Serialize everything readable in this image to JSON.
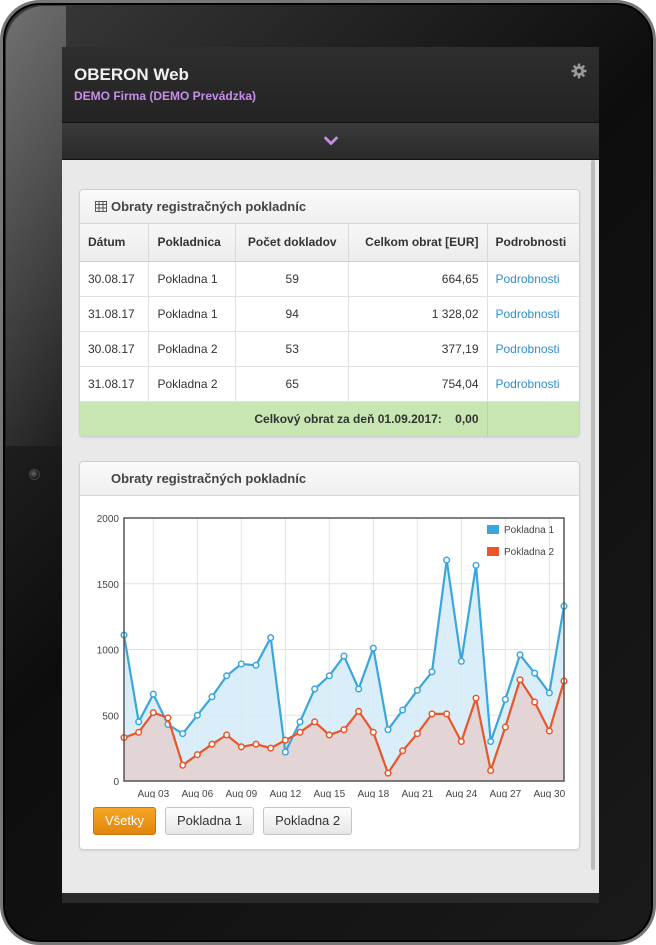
{
  "app": {
    "title": "OBERON Web",
    "subtitle": "DEMO Firma (DEMO Prevádzka)",
    "accent_color": "#c78de8",
    "header_icons": [
      "gear-icon",
      "chevron-down-icon"
    ]
  },
  "table_panel": {
    "title": "Obraty registračných pokladníc",
    "icon": "table-icon",
    "columns": [
      "Dátum",
      "Pokladnica",
      "Počet dokladov",
      "Celkom obrat [EUR]",
      "Podrobnosti"
    ],
    "rows": [
      {
        "date": "30.08.17",
        "register": "Pokladna 1",
        "count": "59",
        "total": "664,65",
        "details": "Podrobnosti"
      },
      {
        "date": "31.08.17",
        "register": "Pokladna 1",
        "count": "94",
        "total": "1 328,02",
        "details": "Podrobnosti"
      },
      {
        "date": "30.08.17",
        "register": "Pokladna 2",
        "count": "53",
        "total": "377,19",
        "details": "Podrobnosti"
      },
      {
        "date": "31.08.17",
        "register": "Pokladna 2",
        "count": "65",
        "total": "754,04",
        "details": "Podrobnosti"
      }
    ],
    "footer": {
      "label": "Celkový obrat za deň 01.09.2017:",
      "value": "0,00",
      "color": "#c8e6b2"
    },
    "link_color": "#2f8fd0"
  },
  "chart_panel": {
    "title": "Obraty registračných pokladníc",
    "buttons": [
      {
        "label": "Všetky",
        "active": true
      },
      {
        "label": "Pokladna 1",
        "active": false
      },
      {
        "label": "Pokladna 2",
        "active": false
      }
    ],
    "active_color": "#f09819"
  },
  "chart_data": {
    "type": "area",
    "x_start_day": 1,
    "x_end_day": 31,
    "tick_labels": [
      "Aug 03",
      "Aug 06",
      "Aug 09",
      "Aug 12",
      "Aug 15",
      "Aug 18",
      "Aug 21",
      "Aug 24",
      "Aug 27",
      "Aug 30"
    ],
    "tick_days": [
      3,
      6,
      9,
      12,
      15,
      18,
      21,
      24,
      27,
      30
    ],
    "ylim": [
      0,
      2000
    ],
    "y_ticks": [
      0,
      500,
      1000,
      1500,
      2000
    ],
    "legend_position": "top-right",
    "grid": true,
    "series": [
      {
        "name": "Pokladna 1",
        "color": "#3aa6dd",
        "fill": "#d4ebf8",
        "values": [
          1110,
          450,
          660,
          430,
          360,
          500,
          640,
          800,
          890,
          880,
          1090,
          220,
          450,
          700,
          800,
          950,
          700,
          1010,
          390,
          540,
          690,
          830,
          1680,
          910,
          1640,
          300,
          620,
          960,
          820,
          670,
          1330
        ]
      },
      {
        "name": "Pokladna 2",
        "color": "#e8562a",
        "fill": "#e4cfcf",
        "values": [
          330,
          370,
          520,
          480,
          120,
          200,
          280,
          350,
          260,
          280,
          250,
          310,
          370,
          450,
          350,
          390,
          530,
          370,
          60,
          230,
          360,
          510,
          510,
          300,
          630,
          80,
          410,
          770,
          600,
          380,
          760
        ]
      }
    ]
  }
}
